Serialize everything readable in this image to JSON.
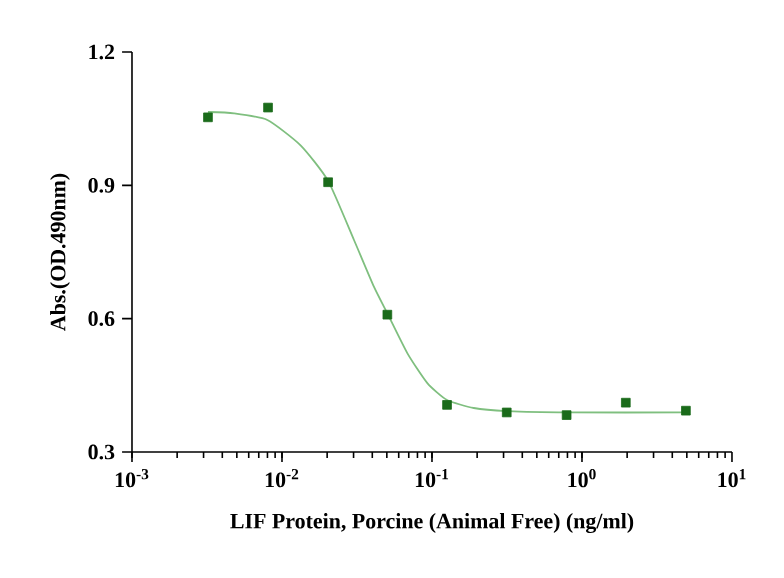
{
  "chart_data": {
    "type": "scatter",
    "xlabel": "LIF Protein, Porcine (Animal Free) (ng/ml)",
    "ylabel": "Abs.(OD.490nm)",
    "log": "x",
    "xlim": [
      0.001,
      10
    ],
    "xticks": [
      {
        "value": 0.001,
        "label": "10$^{-3}$"
      },
      {
        "value": 0.01,
        "label": "10$^{-2}$"
      },
      {
        "value": 0.1,
        "label": "10$^{-1}$"
      },
      {
        "value": 1,
        "label": "10$^{0}$"
      },
      {
        "value": 10,
        "label": "10$^{1}$"
      }
    ],
    "ylim": [
      0.3,
      1.2
    ],
    "yticks": [
      {
        "value": 0.3,
        "label": "0.3"
      },
      {
        "value": 0.6,
        "label": "0.6"
      },
      {
        "value": 0.9,
        "label": "0.9"
      },
      {
        "value": 1.2,
        "label": "1.2"
      }
    ],
    "series": [
      {
        "type": "scatter",
        "marker": "square",
        "color": "#1a6b1a",
        "x": [
          0.00321,
          0.00807,
          0.0203,
          0.0504,
          0.126,
          0.315,
          0.79,
          1.96,
          4.93
        ],
        "values": [
          1.053,
          1.075,
          0.907,
          0.609,
          0.406,
          0.389,
          0.383,
          0.411,
          0.393
        ]
      },
      {
        "type": "line",
        "marker": "none",
        "line_style": "solid",
        "color": "#7fbf7f",
        "x": [
          0.00321,
          0.00479,
          0.00799,
          0.0133,
          0.0203,
          0.0302,
          0.041,
          0.0504,
          0.0686,
          0.0931,
          0.126,
          0.19,
          0.315,
          0.8,
          4.93
        ],
        "values": [
          1.065,
          1.062,
          1.047,
          0.99,
          0.91,
          0.777,
          0.672,
          0.612,
          0.522,
          0.455,
          0.417,
          0.399,
          0.392,
          0.389,
          0.389
        ]
      }
    ]
  }
}
